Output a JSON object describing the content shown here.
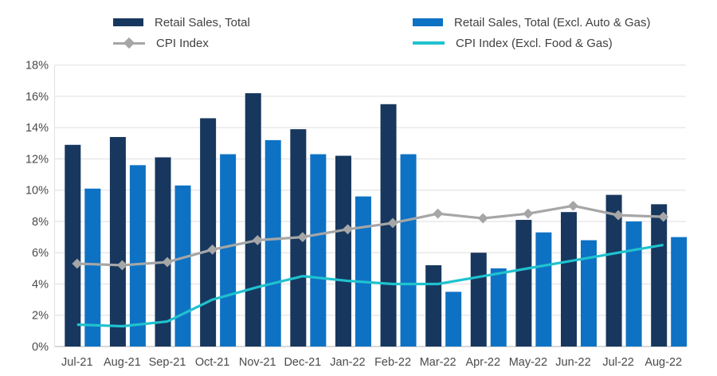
{
  "legend": {
    "items": [
      {
        "label": "Retail Sales, Total",
        "swatch": "bar",
        "series": 0
      },
      {
        "label": "CPI Index",
        "swatch": "line-diamond",
        "series": 2
      },
      {
        "label": "Retail Sales, Total (Excl. Auto & Gas)",
        "swatch": "bar",
        "series": 1
      },
      {
        "label": "CPI Index (Excl. Food & Gas)",
        "swatch": "line",
        "series": 3
      }
    ]
  },
  "chart_data": {
    "type": "bar",
    "subtype": "combo-bar-line",
    "categories": [
      "Jul-21",
      "Aug-21",
      "Sep-21",
      "Oct-21",
      "Nov-21",
      "Dec-21",
      "Jan-22",
      "Feb-22",
      "Mar-22",
      "Apr-22",
      "May-22",
      "Jun-22",
      "Jul-22",
      "Aug-22"
    ],
    "series": [
      {
        "name": "Retail Sales, Total",
        "type": "bar",
        "color": "#17375e",
        "values": [
          12.9,
          13.4,
          12.1,
          14.6,
          16.2,
          13.9,
          12.2,
          15.5,
          5.2,
          6.0,
          8.1,
          8.6,
          9.7,
          9.1
        ]
      },
      {
        "name": "Retail Sales, Total (Excl. Auto & Gas)",
        "type": "bar",
        "color": "#0e72c4",
        "values": [
          10.1,
          11.6,
          10.3,
          12.3,
          13.2,
          12.3,
          9.6,
          12.3,
          3.5,
          5.0,
          7.3,
          6.8,
          8.0,
          7.0
        ]
      },
      {
        "name": "CPI Index",
        "type": "line",
        "marker": "diamond",
        "color": "#a6a6a6",
        "values": [
          5.3,
          5.2,
          5.4,
          6.2,
          6.8,
          7.0,
          7.5,
          7.9,
          8.5,
          8.2,
          8.5,
          9.0,
          8.4,
          8.3
        ]
      },
      {
        "name": "CPI Index (Excl. Food & Gas)",
        "type": "line",
        "marker": "none",
        "color": "#1fc2ce",
        "values": [
          1.4,
          1.3,
          1.6,
          3.0,
          3.8,
          4.5,
          4.2,
          4.0,
          4.0,
          4.5,
          5.0,
          5.5,
          6.0,
          6.5
        ]
      }
    ],
    "ylim": [
      0,
      18
    ],
    "ytick_step": 2,
    "y_tick_labels": [
      "0%",
      "2%",
      "4%",
      "6%",
      "8%",
      "10%",
      "12%",
      "14%",
      "16%",
      "18%"
    ],
    "grid": "horizontal",
    "legend_position": "top",
    "xlabel": "",
    "ylabel": ""
  },
  "colors": {
    "grid": "#e4e4e4",
    "axis_line": "#c2c2c2",
    "tick_text": "#4a4a4a",
    "legend_text": "#414141",
    "background": "#ffffff"
  }
}
